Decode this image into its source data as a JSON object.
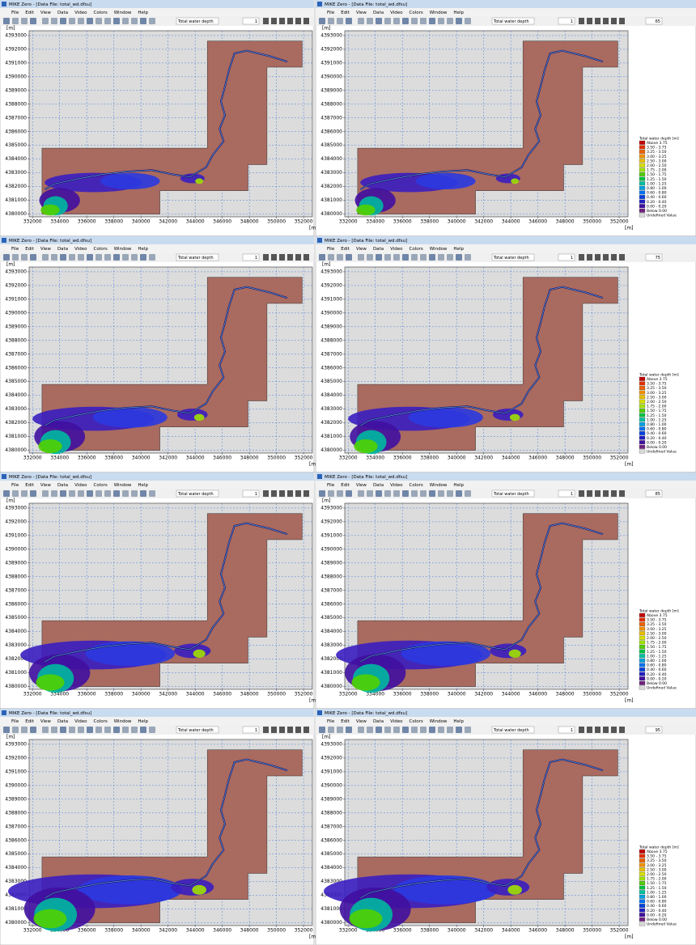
{
  "window": {
    "title": "MIKE Zero - [Data File: total_wd.dfsu]",
    "menu": [
      "File",
      "Edit",
      "View",
      "Data",
      "Video",
      "Colors",
      "Window",
      "Help"
    ],
    "item_selector": "Total water depth",
    "page_field": "1"
  },
  "axes": {
    "y_unit": "[m]",
    "x_unit": "[m]",
    "xlim": [
      331750,
      352650
    ],
    "ylim": [
      4379800,
      4393350
    ],
    "xticks": [
      332000,
      334000,
      336000,
      338000,
      340000,
      342000,
      344000,
      346000,
      348000,
      350000,
      352000
    ],
    "yticks": [
      4380000,
      4381000,
      4382000,
      4383000,
      4384000,
      4385000,
      4386000,
      4387000,
      4388000,
      4389000,
      4390000,
      4391000,
      4392000,
      4393000
    ],
    "grid": true
  },
  "legend": {
    "title": "Total water depth [m]",
    "items": [
      {
        "label": "Above 3.75",
        "color": "#c00000"
      },
      {
        "label": "3.50 - 3.75",
        "color": "#e03000"
      },
      {
        "label": "3.25 - 3.50",
        "color": "#f06000"
      },
      {
        "label": "3.00 - 3.25",
        "color": "#f09000"
      },
      {
        "label": "2.50 - 3.00",
        "color": "#e8c000"
      },
      {
        "label": "2.00 - 2.50",
        "color": "#d8e000"
      },
      {
        "label": "1.75 - 2.00",
        "color": "#a0e000"
      },
      {
        "label": "1.50 - 1.75",
        "color": "#50d000"
      },
      {
        "label": "1.25 - 1.50",
        "color": "#00c040"
      },
      {
        "label": "1.00 - 1.25",
        "color": "#00c0a0"
      },
      {
        "label": "0.80 - 1.00",
        "color": "#00a0e0"
      },
      {
        "label": "0.60 - 0.80",
        "color": "#0070f0"
      },
      {
        "label": "0.40 - 0.60",
        "color": "#0040e0"
      },
      {
        "label": "0.20 - 0.40",
        "color": "#2020c0"
      },
      {
        "label": "0.00 - 0.20",
        "color": "#4010a0"
      },
      {
        "label": "Below 0.00",
        "color": "#702080"
      },
      {
        "label": "Undefined Value",
        "color": "#d8d8d8"
      }
    ]
  },
  "panels": [
    {
      "legend": false
    },
    {
      "legend": true,
      "time_step": "65"
    },
    {
      "legend": false
    },
    {
      "legend": true,
      "time_step": "75"
    },
    {
      "legend": false
    },
    {
      "legend": true,
      "time_step": "85"
    },
    {
      "legend": false
    },
    {
      "legend": true,
      "time_step": "95"
    }
  ]
}
